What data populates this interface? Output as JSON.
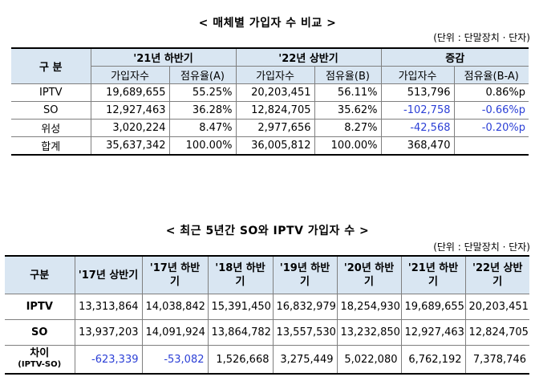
{
  "table1": {
    "title": "< 매체별 가입자 수 비교 >",
    "unit": "(단위 : 단말장치 · 단자)",
    "header": {
      "category": "구  분",
      "group1": "'21년 하반기",
      "group2": "'22년 상반기",
      "group3": "증감",
      "sub": [
        "가입자수",
        "점유율(A)",
        "가입자수",
        "점유율(B)",
        "가입자수",
        "점유율(B-A)"
      ]
    },
    "rows": [
      {
        "label": "IPTV",
        "v1": "19,689,655",
        "v2": "55.25%",
        "v3": "20,203,451",
        "v4": "56.11%",
        "v5": "513,796",
        "v6": "0.86%p"
      },
      {
        "label": "SO",
        "v1": "12,927,463",
        "v2": "36.28%",
        "v3": "12,824,705",
        "v4": "35.62%",
        "v5": "-102,758",
        "v6": "-0.66%p"
      },
      {
        "label": "위성",
        "v1": "3,020,224",
        "v2": "8.47%",
        "v3": "2,977,656",
        "v4": "8.27%",
        "v5": "-42,568",
        "v6": "-0.20%p"
      },
      {
        "label": "합계",
        "v1": "35,637,342",
        "v2": "100.00%",
        "v3": "36,005,812",
        "v4": "100.00%",
        "v5": "368,470",
        "v6": ""
      }
    ]
  },
  "table2": {
    "title": "< 최근 5년간 SO와 IPTV 가입자 수 >",
    "unit": "(단위 : 단말장치 · 단자)",
    "header": [
      "구분",
      "'17년 상반기",
      "'17년 하반기",
      "'18년 하반기",
      "'19년 하반기",
      "'20년 하반기",
      "'21년 하반기",
      "'22년 상반기"
    ],
    "rows": [
      {
        "label": "IPTV",
        "values": [
          "13,313,864",
          "14,038,842",
          "15,391,450",
          "16,832,979",
          "18,254,930",
          "19,689,655",
          "20,203,451"
        ]
      },
      {
        "label": "SO",
        "values": [
          "13,937,203",
          "14,091,924",
          "13,864,782",
          "13,557,530",
          "13,232,850",
          "12,927,463",
          "12,824,705"
        ]
      },
      {
        "label": "차이",
        "label_sub": "(IPTV-SO)",
        "values": [
          "-623,339",
          "-53,082",
          "1,526,668",
          "3,275,449",
          "5,022,080",
          "6,762,192",
          "7,378,746"
        ]
      }
    ]
  },
  "colors": {
    "header_bg": "#d9e6f2",
    "negative_text": "#2b3fd6"
  }
}
